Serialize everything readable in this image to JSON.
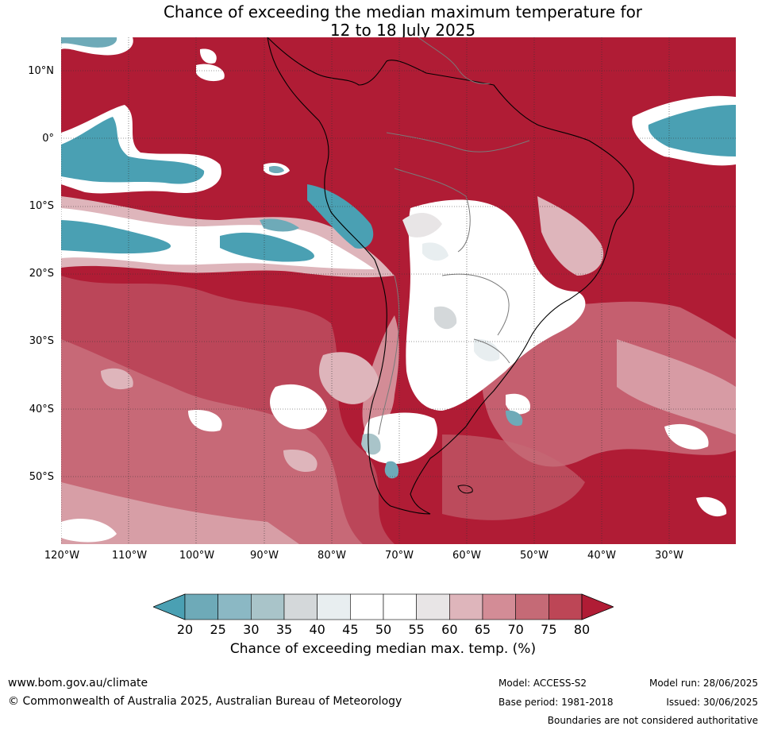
{
  "title": {
    "line1": "Chance of exceeding the median maximum temperature for",
    "line2": "12 to 18 July 2025"
  },
  "map": {
    "lat_labels": [
      "10°N",
      "0°",
      "10°S",
      "20°S",
      "30°S",
      "40°S",
      "50°S"
    ],
    "lon_labels": [
      "120°W",
      "110°W",
      "100°W",
      "90°W",
      "80°W",
      "70°W",
      "60°W",
      "50°W",
      "40°W",
      "30°W"
    ],
    "colors": {
      "c20": "#4aa0b3",
      "c25": "#6eaab8",
      "c30": "#8bb8c4",
      "c35": "#a9c4c9",
      "c40": "#d4d8da",
      "c45": "#e8eef0",
      "c50": "#ffffff",
      "c55": "#ffffff",
      "c60": "#e8e5e6",
      "c65": "#deb5bb",
      "c70": "#d38c96",
      "c75": "#c56a76",
      "c80": "#bd4656",
      "c80plus": "#b01c35"
    }
  },
  "colorbar": {
    "ticks": [
      "20",
      "25",
      "30",
      "35",
      "40",
      "45",
      "50",
      "55",
      "60",
      "65",
      "70",
      "75",
      "80"
    ],
    "segment_colors": [
      "#6eaab8",
      "#8bb8c4",
      "#a9c4c9",
      "#d4d8da",
      "#e8eef0",
      "#ffffff",
      "#ffffff",
      "#e8e5e6",
      "#deb5bb",
      "#d38c96",
      "#c56a76",
      "#bd4656"
    ],
    "low_extend_color": "#4aa0b3",
    "high_extend_color": "#b01c35",
    "label": "Chance of exceeding median max. temp. (%)"
  },
  "footer": {
    "website": "www.bom.gov.au/climate",
    "copyright": "© Commonwealth of Australia 2025, Australian Bureau of Meteorology",
    "model": "Model: ACCESS-S2",
    "model_run": "Model run: 28/06/2025",
    "base_period": "Base period: 1981-2018",
    "issued": "Issued: 30/06/2025",
    "disclaimer": "Boundaries are not considered authoritative"
  }
}
